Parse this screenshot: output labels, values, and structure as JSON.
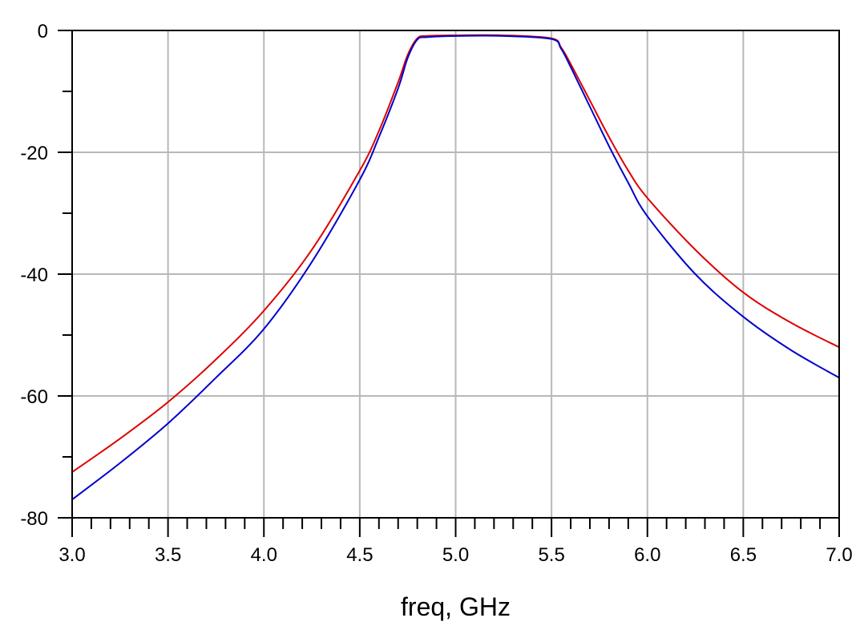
{
  "chart_data": {
    "type": "line",
    "title": "",
    "xlabel": "freq, GHz",
    "ylabel": "",
    "xlim": [
      3.0,
      7.0
    ],
    "ylim": [
      -80,
      0
    ],
    "grid": true,
    "x_ticks": [
      3.0,
      3.5,
      4.0,
      4.5,
      5.0,
      5.5,
      6.0,
      6.5,
      7.0
    ],
    "x_tick_labels": [
      "3.0",
      "3.5",
      "4.0",
      "4.5",
      "5.0",
      "5.5",
      "6.0",
      "6.5",
      "7.0"
    ],
    "y_ticks": [
      0,
      -20,
      -40,
      -60,
      -80
    ],
    "y_tick_labels": [
      "0",
      "-20",
      "-40",
      "-60",
      "-80"
    ],
    "series": [
      {
        "color": "#dd0000",
        "x": [
          3.0,
          3.25,
          3.5,
          3.75,
          4.0,
          4.25,
          4.5,
          4.6,
          4.7,
          4.75,
          4.8,
          4.85,
          5.0,
          5.25,
          5.5,
          5.55,
          5.6,
          5.7,
          5.8,
          5.9,
          6.0,
          6.25,
          6.5,
          6.75,
          7.0
        ],
        "y": [
          -72.5,
          -67.0,
          -61.0,
          -54.0,
          -46.0,
          -36.0,
          -23.0,
          -16.5,
          -8.5,
          -4.0,
          -1.3,
          -0.9,
          -0.8,
          -0.8,
          -1.3,
          -2.8,
          -5.5,
          -11.5,
          -17.5,
          -23.0,
          -27.5,
          -36.0,
          -43.0,
          -48.0,
          -52.0
        ]
      },
      {
        "color": "#0000cc",
        "x": [
          3.0,
          3.25,
          3.5,
          3.75,
          4.0,
          4.25,
          4.5,
          4.6,
          4.7,
          4.75,
          4.8,
          4.85,
          5.0,
          5.25,
          5.5,
          5.55,
          5.6,
          5.7,
          5.8,
          5.9,
          6.0,
          6.25,
          6.5,
          6.75,
          7.0
        ],
        "y": [
          -77.0,
          -71.0,
          -64.5,
          -57.0,
          -49.0,
          -38.0,
          -24.5,
          -17.5,
          -9.5,
          -4.5,
          -1.5,
          -1.1,
          -0.9,
          -0.9,
          -1.4,
          -3.0,
          -6.0,
          -12.5,
          -19.0,
          -25.0,
          -30.5,
          -40.0,
          -47.0,
          -52.5,
          -57.0
        ]
      }
    ]
  }
}
